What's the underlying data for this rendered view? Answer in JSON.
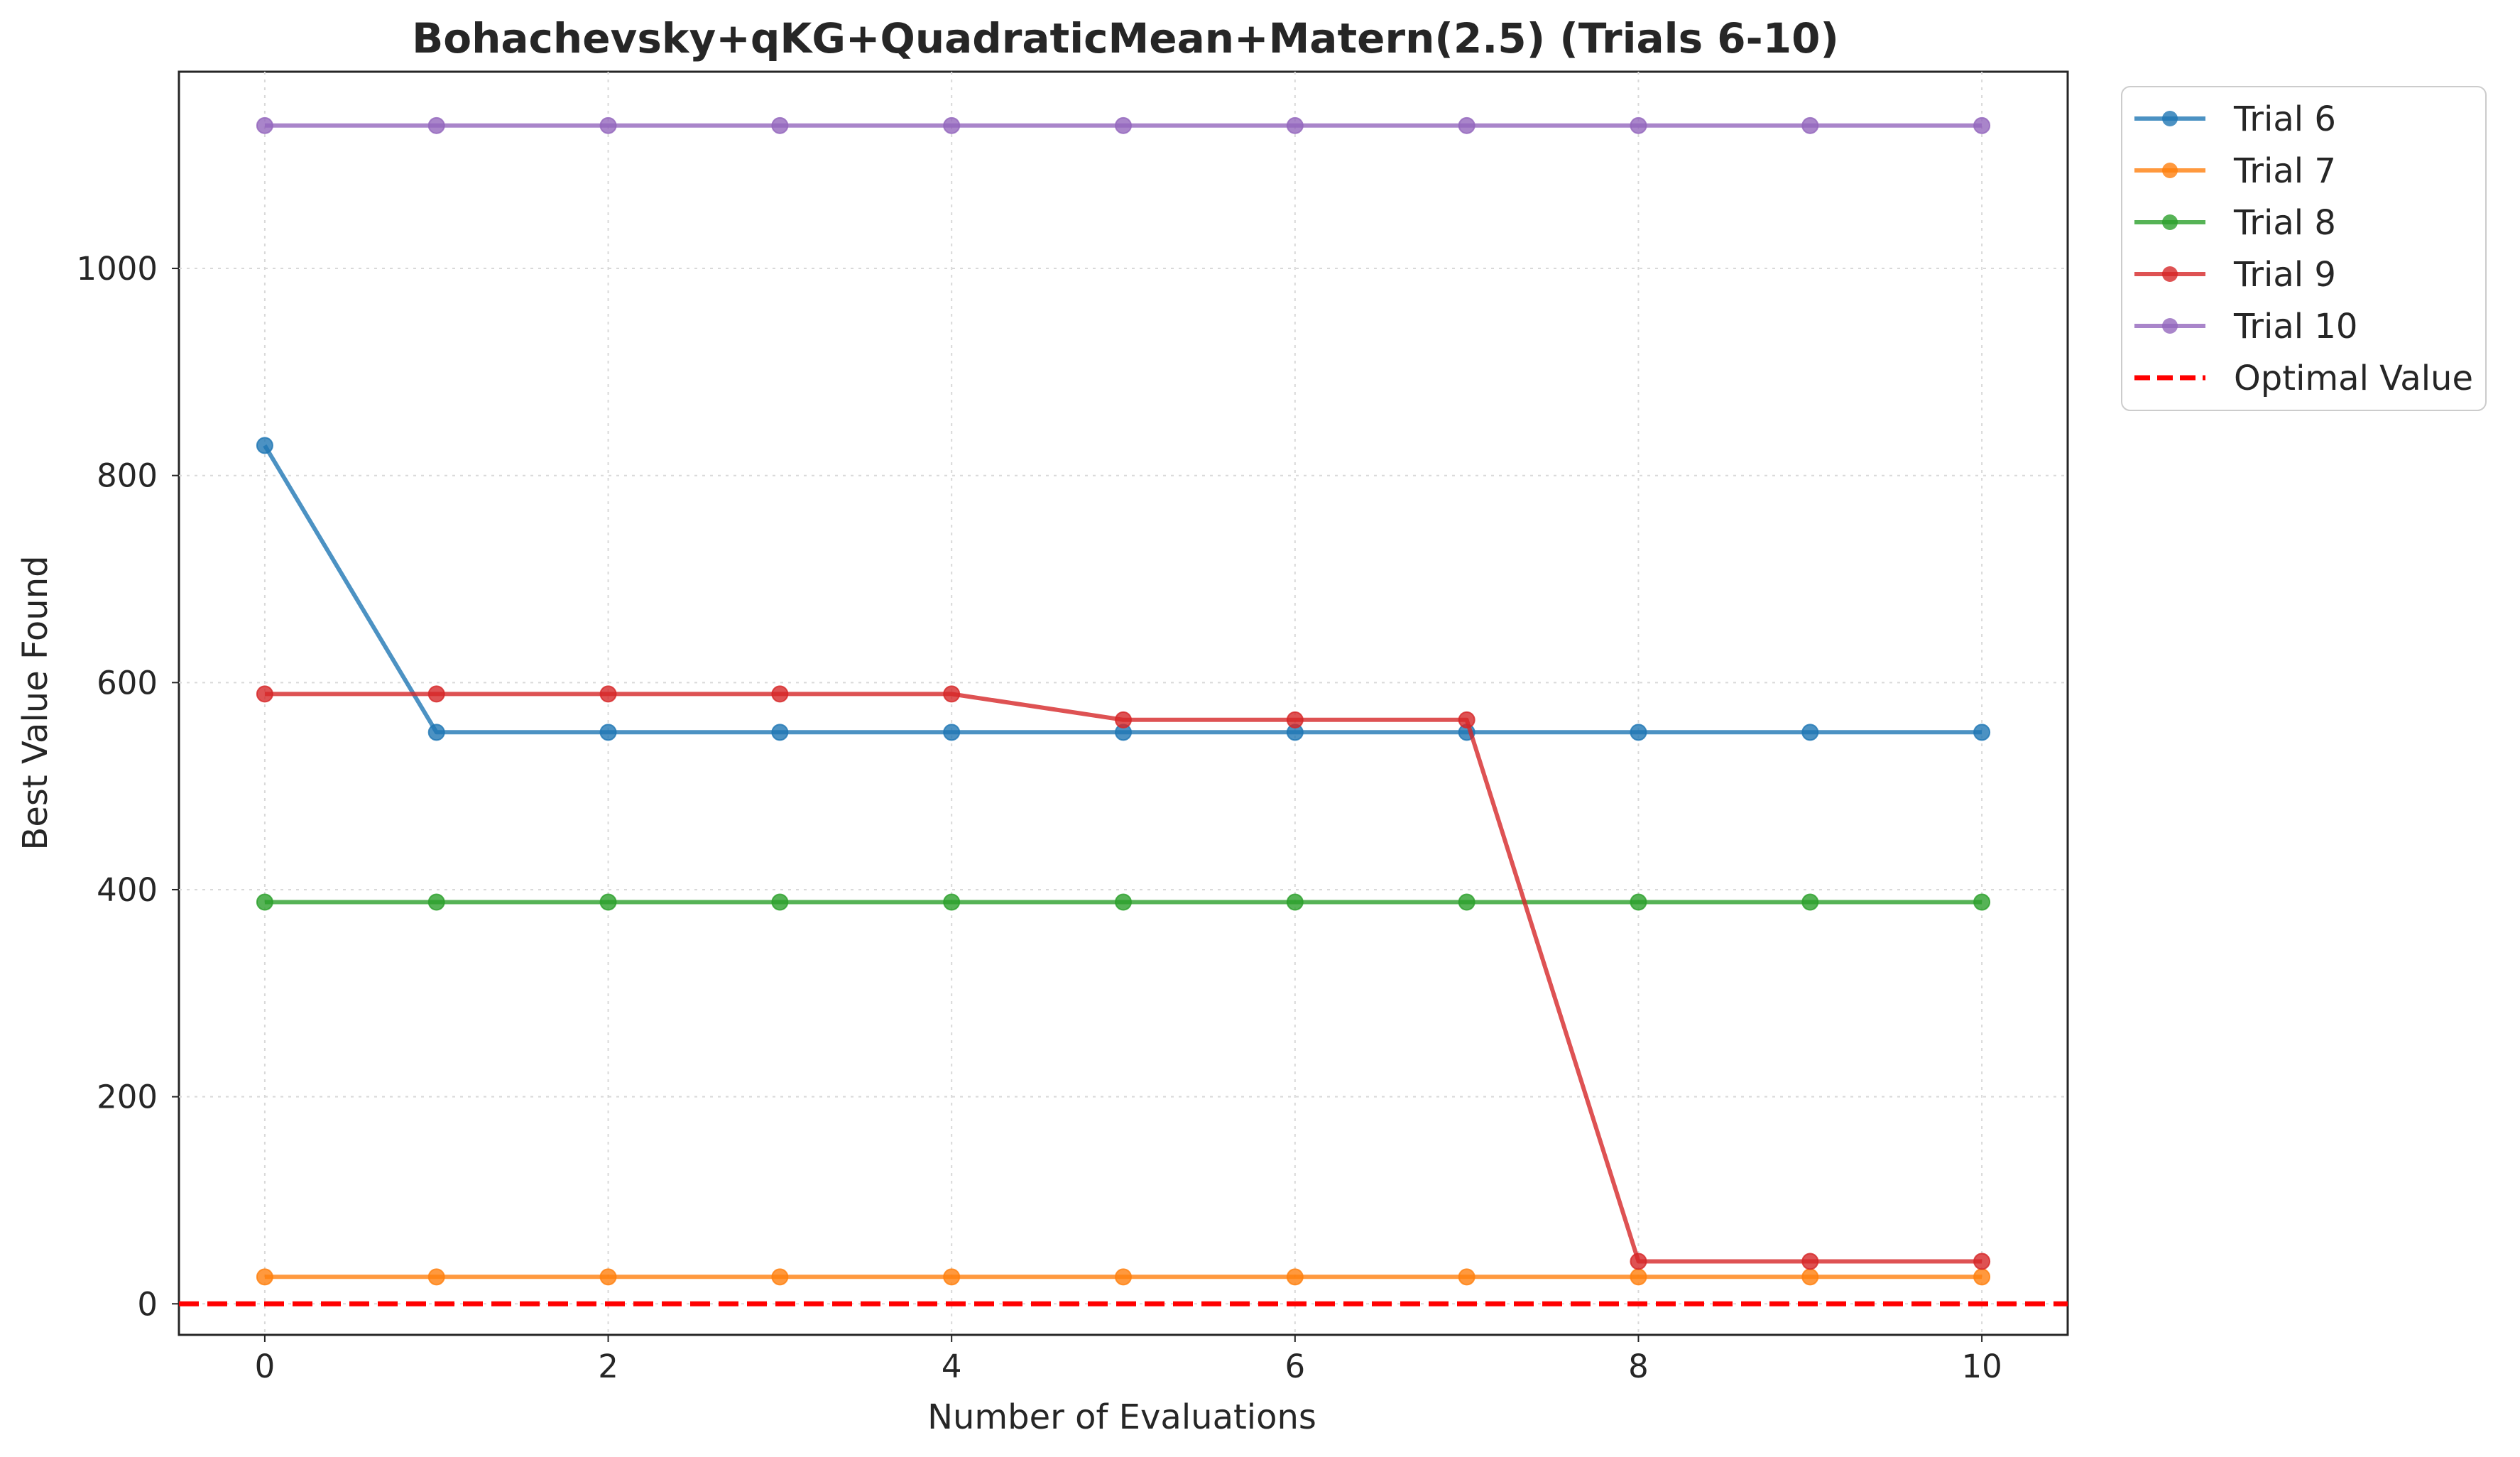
{
  "chart_data": {
    "type": "line",
    "title": "Bohachevsky+qKG+QuadraticMean+Matern(2.5) (Trials 6-10)",
    "xlabel": "Number of Evaluations",
    "ylabel": "Best Value Found",
    "xlim": [
      -0.5,
      10.5
    ],
    "ylim": [
      -30,
      1190
    ],
    "xticks": [
      0,
      2,
      4,
      6,
      8,
      10
    ],
    "yticks": [
      0,
      200,
      400,
      600,
      800,
      1000
    ],
    "grid": true,
    "legend_position": "outside-top-right",
    "x": [
      0,
      1,
      2,
      3,
      4,
      5,
      6,
      7,
      8,
      9,
      10
    ],
    "series": [
      {
        "name": "Trial 6",
        "color": "#1f77b4",
        "values": [
          829,
          552,
          552,
          552,
          552,
          552,
          552,
          552,
          552,
          552,
          552
        ]
      },
      {
        "name": "Trial 7",
        "color": "#ff7f0e",
        "values": [
          26,
          26,
          26,
          26,
          26,
          26,
          26,
          26,
          26,
          26,
          26
        ]
      },
      {
        "name": "Trial 8",
        "color": "#2ca02c",
        "values": [
          388,
          388,
          388,
          388,
          388,
          388,
          388,
          388,
          388,
          388,
          388
        ]
      },
      {
        "name": "Trial 9",
        "color": "#d62728",
        "values": [
          589,
          589,
          589,
          589,
          589,
          564,
          564,
          564,
          41,
          41,
          41
        ]
      },
      {
        "name": "Trial 10",
        "color": "#9467bd",
        "values": [
          1138,
          1138,
          1138,
          1138,
          1138,
          1138,
          1138,
          1138,
          1138,
          1138,
          1138
        ]
      }
    ],
    "reference_line": {
      "name": "Optimal Value",
      "value": 0,
      "color": "#ff0000",
      "style": "dashed"
    }
  }
}
